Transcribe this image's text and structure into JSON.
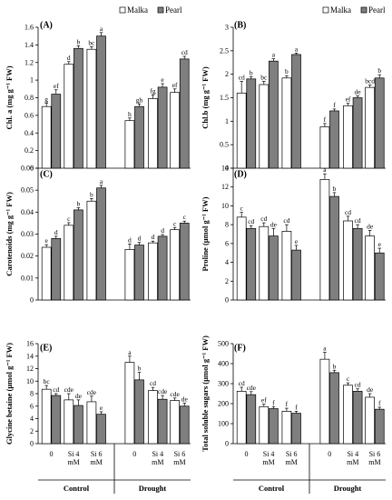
{
  "legend": {
    "series_names": [
      "Malka",
      "Pearl"
    ],
    "colors": [
      "#ffffff",
      "#7f7f7f"
    ]
  },
  "chart_data": [
    {
      "type": "bar",
      "panel": "(A)",
      "ylabel": "Chl. a (mg g⁻¹ FW)",
      "ylim": [
        0,
        1.6
      ],
      "yticks": [
        "0",
        "0.2",
        "0.4",
        "0.6",
        "0.8",
        "1",
        "1.2",
        "1.4",
        "1.6"
      ],
      "legend": "top",
      "series": [
        {
          "name": "Malka",
          "values": [
            0.7,
            1.18,
            1.35,
            0.54,
            0.79,
            0.86
          ],
          "errors": [
            0.04,
            0.03,
            0.03,
            0.03,
            0.04,
            0.04
          ],
          "letters": [
            "g",
            "d",
            "bc",
            "h",
            "fg",
            "ef"
          ]
        },
        {
          "name": "Pearl",
          "values": [
            0.84,
            1.36,
            1.5,
            0.7,
            0.92,
            1.24
          ],
          "errors": [
            0.05,
            0.03,
            0.04,
            0.03,
            0.04,
            0.03
          ],
          "letters": [
            "ef",
            "b",
            "a",
            "gh",
            "e",
            "cd"
          ]
        }
      ]
    },
    {
      "type": "bar",
      "panel": "(B)",
      "ylabel": "Chl.b (mg g⁻¹ FW)",
      "ylim": [
        0,
        3
      ],
      "yticks": [
        "0",
        "0.5",
        "1",
        "1.5",
        "2",
        "2.5",
        "3"
      ],
      "legend": "top",
      "series": [
        {
          "name": "Malka",
          "values": [
            1.6,
            1.78,
            1.92,
            0.88,
            1.33,
            1.72
          ],
          "errors": [
            0.25,
            0.07,
            0.05,
            0.07,
            0.05,
            0.05
          ],
          "letters": [
            "cd",
            "bc",
            "b",
            "f",
            "ef",
            "bcd"
          ]
        },
        {
          "name": "Pearl",
          "values": [
            1.9,
            2.28,
            2.42,
            1.22,
            1.5,
            1.92
          ],
          "errors": [
            0.05,
            0.05,
            0.03,
            0.04,
            0.04,
            0.07
          ],
          "letters": [
            "b",
            "a",
            "a",
            "f",
            "de",
            "b"
          ]
        }
      ]
    },
    {
      "type": "bar",
      "panel": "(C)",
      "ylabel": "Carotenoids (mg g⁻¹ FW)",
      "ylim": [
        0,
        0.06
      ],
      "yticks": [
        "0",
        "0.01",
        "0.02",
        "0.03",
        "0.04",
        "0.05",
        "0.06"
      ],
      "series": [
        {
          "name": "Malka",
          "values": [
            0.024,
            0.034,
            0.045,
            0.023,
            0.026,
            0.032
          ],
          "errors": [
            0.0012,
            0.0012,
            0.0012,
            0.0025,
            0.0008,
            0.001
          ],
          "letters": [
            "e",
            "c",
            "b",
            "d",
            "d",
            "c"
          ]
        },
        {
          "name": "Pearl",
          "values": [
            0.028,
            0.041,
            0.051,
            0.025,
            0.029,
            0.035
          ],
          "errors": [
            0.001,
            0.001,
            0.0012,
            0.0012,
            0.0008,
            0.0009
          ],
          "letters": [
            "d",
            "b",
            "a",
            "d",
            "d",
            "c"
          ]
        }
      ]
    },
    {
      "type": "bar",
      "panel": "(D)",
      "ylabel": "Proline (µmol g⁻¹ FW)",
      "ylim": [
        0,
        14
      ],
      "yticks": [
        "0",
        "2",
        "4",
        "6",
        "8",
        "10",
        "12",
        "14"
      ],
      "series": [
        {
          "name": "Malka",
          "values": [
            8.8,
            7.8,
            7.3,
            12.8,
            8.4,
            6.8
          ],
          "errors": [
            0.5,
            0.4,
            0.7,
            0.6,
            0.5,
            0.6
          ],
          "letters": [
            "c",
            "cd",
            "cd",
            "a",
            "cd",
            "de"
          ]
        },
        {
          "name": "Pearl",
          "values": [
            7.6,
            6.8,
            5.3,
            11.0,
            7.6,
            5.0
          ],
          "errors": [
            0.3,
            0.8,
            0.5,
            0.4,
            0.4,
            0.5
          ],
          "letters": [
            "cd",
            "de",
            "e",
            "b",
            "cd",
            "e"
          ]
        }
      ]
    },
    {
      "type": "bar",
      "panel": "(E)",
      "ylabel": "Glycine betaine (µmol g⁻¹ FW)",
      "ylim": [
        0,
        16
      ],
      "yticks": [
        "0",
        "2",
        "4",
        "6",
        "8",
        "10",
        "12",
        "14",
        "16"
      ],
      "xgroups": [
        "Control",
        "Drought"
      ],
      "xcategories": [
        "0",
        "Si 4 mM",
        "Si 6 mM",
        "0",
        "Si 4 mM",
        "Si 6 mM"
      ],
      "series": [
        {
          "name": "Malka",
          "values": [
            8.7,
            7.0,
            6.7,
            13.0,
            8.5,
            6.9
          ],
          "errors": [
            0.6,
            1.0,
            0.9,
            1.0,
            0.5,
            0.4
          ],
          "letters": [
            "bc",
            "cde",
            "cde",
            "a",
            "cd",
            "cde"
          ]
        },
        {
          "name": "Pearl",
          "values": [
            7.7,
            6.1,
            4.7,
            10.2,
            7.1,
            6.0
          ],
          "errors": [
            0.3,
            0.9,
            0.4,
            1.2,
            0.6,
            0.5
          ],
          "letters": [
            "cd",
            "de",
            "e",
            "b",
            "cde",
            "de"
          ]
        }
      ]
    },
    {
      "type": "bar",
      "panel": "(F)",
      "ylabel": "Total soluble sugars (µmol g⁻¹ FW)",
      "ylim": [
        0,
        500
      ],
      "yticks": [
        "0",
        "100",
        "200",
        "300",
        "400",
        "500"
      ],
      "xgroups": [
        "Control",
        "Drought"
      ],
      "xcategories": [
        "0",
        "Si 4 mM",
        "Si 6 mM",
        "0",
        "Si 4 mM",
        "Si 6 mM"
      ],
      "series": [
        {
          "name": "Malka",
          "values": [
            262,
            185,
            162,
            422,
            292,
            232
          ],
          "errors": [
            20,
            12,
            15,
            35,
            12,
            18
          ],
          "letters": [
            "cd",
            "ef",
            "f",
            "a",
            "c",
            "de"
          ]
        },
        {
          "name": "Pearl",
          "values": [
            245,
            175,
            152,
            355,
            262,
            172
          ],
          "errors": [
            15,
            10,
            10,
            12,
            12,
            10
          ],
          "letters": [
            "cde",
            "f",
            "f",
            "b",
            "cd",
            "f"
          ]
        }
      ]
    }
  ]
}
